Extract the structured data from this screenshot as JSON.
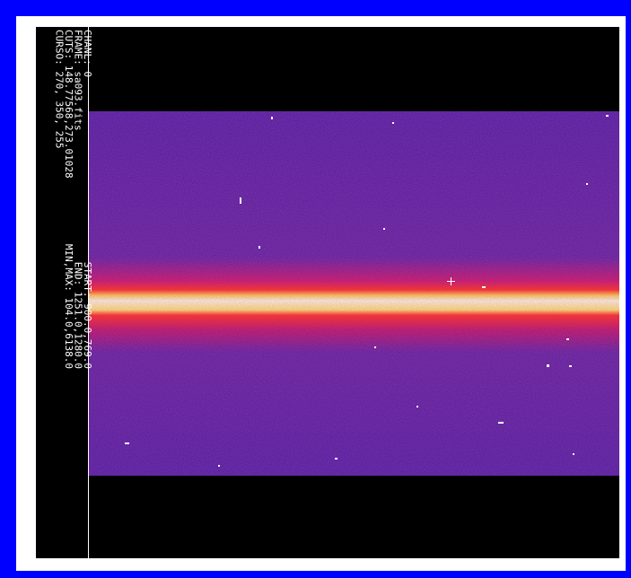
{
  "info_panel": {
    "header_lines": [
      "CHANL: 0",
      "FRAME: sa093.fits",
      "CUTS: 148.77568,273.01028",
      "CURSO: 270, 350, 255"
    ],
    "region_lines": [
      "START: 900.0,769.0",
      "END: 1251.0,1280.0",
      "MIN,MAX: 104.0,6138.0"
    ]
  }
}
